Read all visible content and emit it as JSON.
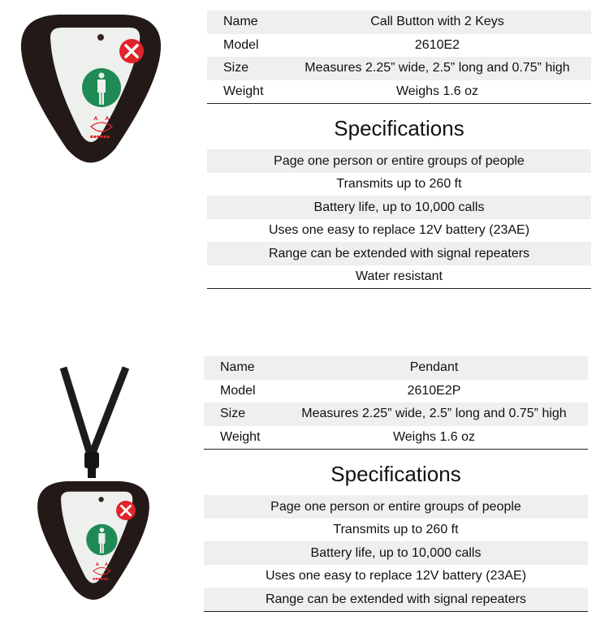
{
  "products": [
    {
      "details": [
        {
          "label": "Name",
          "value": "Call Button with 2 Keys"
        },
        {
          "label": "Model",
          "value": "2610E2"
        },
        {
          "label": "Size",
          "value": "Measures 2.25” wide, 2.5” long and 0.75” high"
        },
        {
          "label": "Weight",
          "value": "Weighs 1.6 oz"
        }
      ],
      "specs_title": "Specifications",
      "specs": [
        "Page one person or entire groups of people",
        "Transmits up to 260 ft",
        "Battery life, up to 10,000 calls",
        "Uses one easy to replace 12V battery (23AE)",
        "Range can be extended with signal repeaters",
        "Water resistant"
      ]
    },
    {
      "details": [
        {
          "label": "Name",
          "value": "Pendant"
        },
        {
          "label": "Model",
          "value": "2610E2P"
        },
        {
          "label": "Size",
          "value": "Measures 2.25” wide, 2.5” long and 0.75” high"
        },
        {
          "label": "Weight",
          "value": "Weighs 1.6 oz"
        }
      ],
      "specs_title": "Specifications",
      "specs": [
        "Page one person or entire groups of people",
        "Transmits up to 260 ft",
        "Battery life, up to 10,000 calls",
        "Uses one easy to replace 12V battery (23AE)",
        "Range can be extended with signal repeaters"
      ]
    }
  ],
  "colors": {
    "body": "#231a18",
    "face": "#eef0ee",
    "call_button": "#1f8a55",
    "cancel_button": "#e0242a",
    "shade": "#efefef"
  },
  "icons": [
    "person-icon",
    "x-icon",
    "cat-logo"
  ]
}
